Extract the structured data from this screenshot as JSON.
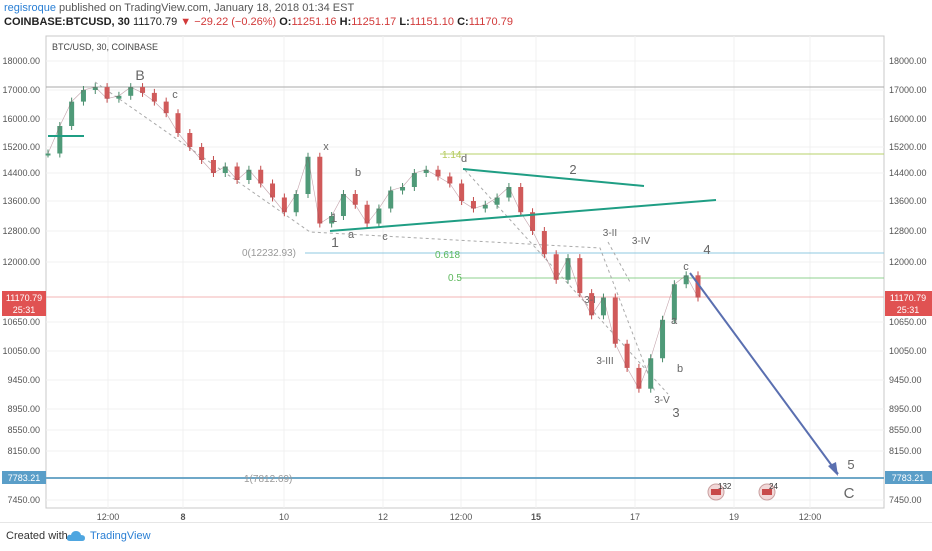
{
  "header": {
    "user": "regisroque",
    "published": "published on TradingView.com, January 18, 2018 01:34 EST",
    "symbol": "COINBASE:BTCUSD, 30",
    "last": "11170.79",
    "change": "−29.22 (−0.26%)",
    "open_label": "O:",
    "open": "11251.16",
    "high_label": "H:",
    "high": "11251.17",
    "low_label": "L:",
    "low": "11151.10",
    "close_label": "C:",
    "close": "11170.79"
  },
  "chart_data": {
    "type": "line",
    "title": "BTC/USD, 30, COINBASE",
    "y_ticks": [
      "18000.00",
      "17000.00",
      "16000.00",
      "15200.00",
      "14400.00",
      "13600.00",
      "12800.00",
      "12000.00",
      "10650.00",
      "10050.00",
      "9450.00",
      "8950.00",
      "8550.00",
      "8150.00",
      "7450.00"
    ],
    "x_ticks": [
      "12:00",
      "8",
      "10",
      "12",
      "12:00",
      "15",
      "17",
      "19",
      "12:00"
    ],
    "current_price": "11170.79",
    "countdown": "25:31",
    "target_price": "7783.21",
    "series": [
      {
        "values": [
          15000,
          15800,
          16600,
          17000,
          17100,
          16700,
          16800,
          17100,
          16900,
          16600,
          16200,
          15600,
          15200,
          14800,
          14400,
          14600,
          14200,
          14500,
          14100,
          13700,
          13300,
          13800,
          14900,
          13000,
          13200,
          13800,
          13500,
          13000,
          13400,
          13900,
          14000,
          14400,
          14500,
          14300,
          14100,
          13600,
          13400,
          13500,
          13700,
          14000,
          13300,
          12800,
          12200,
          11600,
          12100,
          11300,
          10800,
          11200,
          10200,
          9700,
          9300,
          9900,
          10700,
          11500,
          11700,
          11200
        ]
      }
    ],
    "fib_levels": [
      {
        "label": "1.14",
        "price": 14900
      },
      {
        "label": "0(12232.93)",
        "price": 12233
      },
      {
        "label": "0.618",
        "price": 12200
      },
      {
        "label": "0.5",
        "price": 11650
      },
      {
        "label": "1(7812.69)",
        "price": 7813
      }
    ],
    "wave_labels": [
      "B",
      "c",
      "x",
      "b",
      "d",
      "2",
      "1",
      "a",
      "c",
      "1",
      "3-II",
      "3-IV",
      "4",
      "c",
      "3-I",
      "a",
      "3-III",
      "b",
      "3-V",
      "3",
      "5",
      "C"
    ],
    "event_badges": [
      "132",
      "24"
    ],
    "ylim": [
      7000,
      18400
    ]
  },
  "footer": {
    "created": "Created with",
    "brand": "TradingView"
  }
}
